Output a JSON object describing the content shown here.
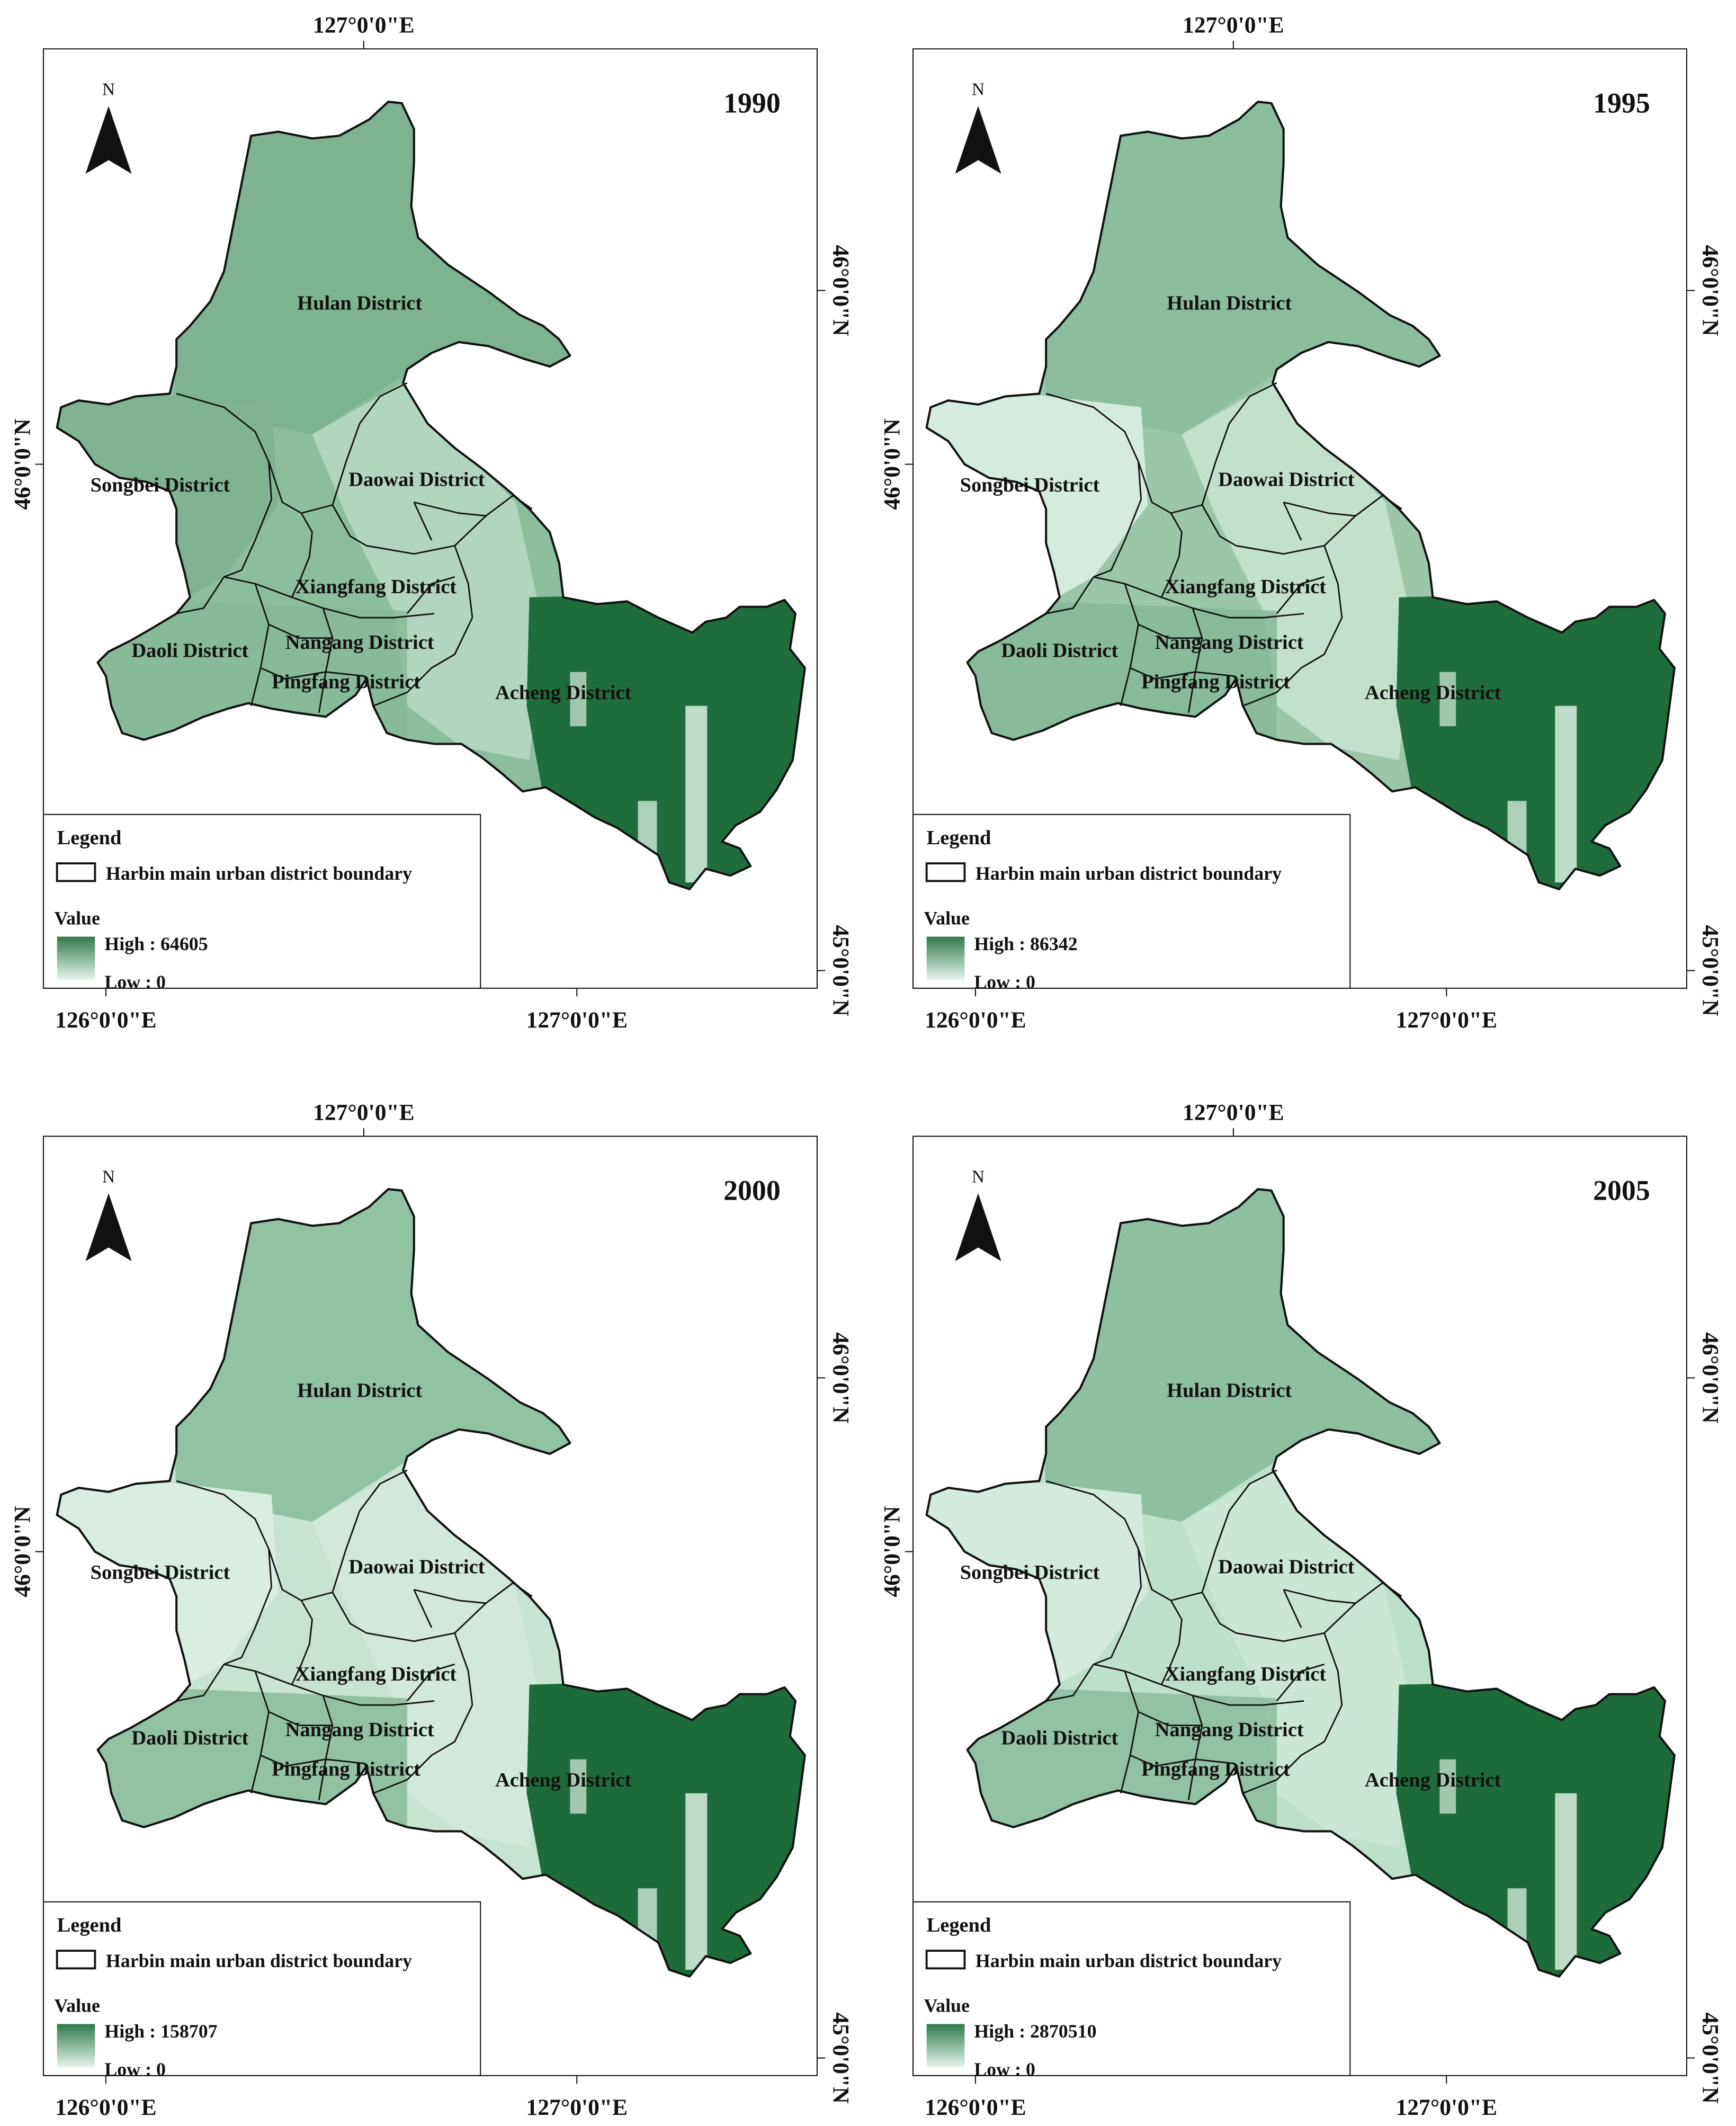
{
  "coord_labels": {
    "top_lon": "127°0'0\"E",
    "bottom_lon_left": "126°0'0\"E",
    "bottom_lon_right": "127°0'0\"E",
    "left_lat": "46°0'0\"N",
    "right_lat_upper": "46°0'0\"N",
    "right_lat_lower": "45°0'0\"N"
  },
  "north_arrow_label": "N",
  "districts": [
    "Hulan District",
    "Songbei District",
    "Daowai District",
    "Xiangfang District",
    "Daoli District",
    "Nangang District",
    "Pingfang District",
    "Acheng District"
  ],
  "legend": {
    "title": "Legend",
    "boundary_label": "Harbin main urban district boundary",
    "value_title": "Value",
    "low_label": "Low : 0",
    "high_prefix": "High : "
  },
  "panels": [
    {
      "year": "1990",
      "high": "64605"
    },
    {
      "year": "1995",
      "high": "86342"
    },
    {
      "year": "2000",
      "high": "158707"
    },
    {
      "year": "2005",
      "high": "2870510"
    }
  ],
  "colors": {
    "high": "#1e6b3a",
    "mid": "#6ea783",
    "low": "#e3f2ea",
    "boundary": "#111111"
  }
}
